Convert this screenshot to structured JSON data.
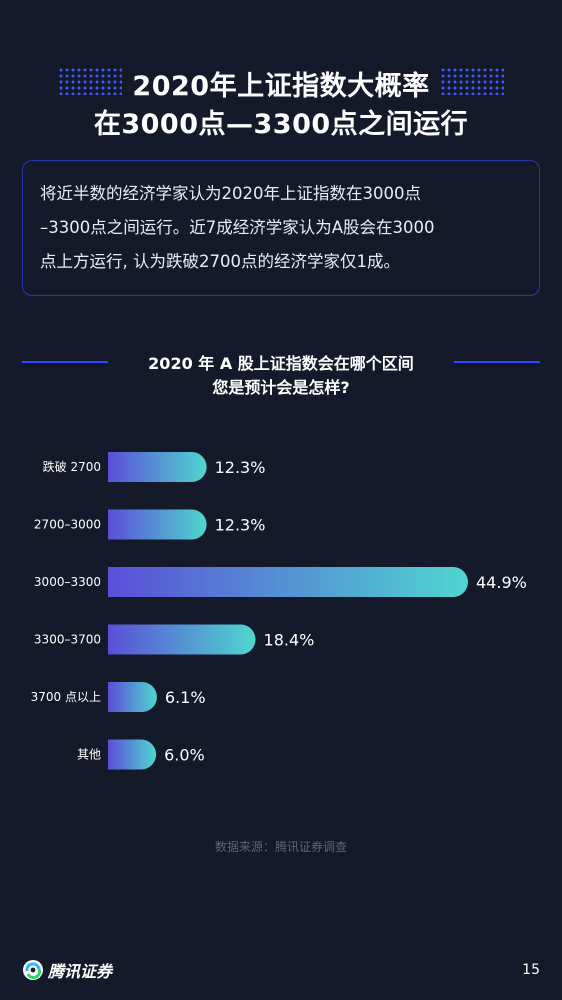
{
  "title": {
    "line1": "2020年上证指数大概率",
    "line2": "在3000点—3300点之间运行"
  },
  "summary": {
    "line1": "将近半数的经济学家认为2020年上证指数在3000点",
    "line2": "–3300点之间运行。近7成经济学家认为A股会在3000",
    "line3": "点上方运行, 认为跌破2700点的经济学家仅1成。"
  },
  "section": {
    "line1": "2020 年 A 股上证指数会在哪个区间",
    "line2": "您是预计会是怎样?"
  },
  "chart_data": {
    "type": "bar",
    "orientation": "horizontal",
    "categories": [
      "跌破 2700",
      "2700–3000",
      "3000–3300",
      "3300–3700",
      "3700 点以上",
      "其他"
    ],
    "values": [
      12.3,
      12.3,
      44.9,
      18.4,
      6.1,
      6.0
    ],
    "value_labels": [
      "12.3%",
      "12.3%",
      "44.9%",
      "18.4%",
      "6.1%",
      "6.0%"
    ],
    "unit": "%",
    "xlim": [
      0,
      44.9
    ],
    "grid": false,
    "colors": {
      "bar_start": "#5a4fd8",
      "bar_end": "#4fd6cf"
    }
  },
  "source": "数据来源：腾讯证券调查",
  "footer": {
    "brand": "腾讯证券",
    "page_number": "15"
  },
  "colors": {
    "background": "#151a2b",
    "accent": "#2f47ff"
  }
}
